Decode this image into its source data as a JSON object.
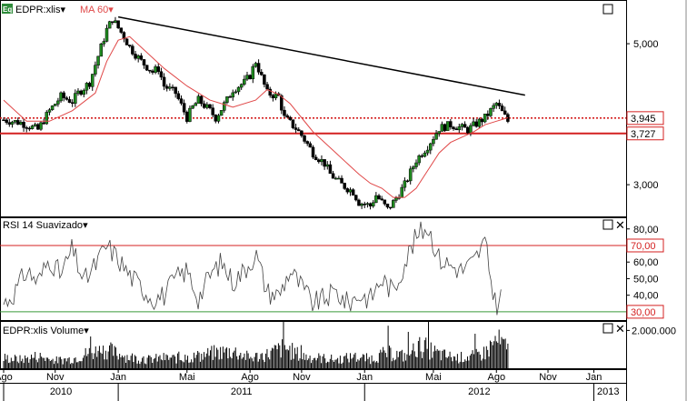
{
  "chart_data": [
    {
      "type": "candlestick",
      "panel": "price",
      "legend": [
        {
          "badge": "Eq",
          "name": "EDPR:xlis",
          "color": "#000000",
          "marker": "▾"
        },
        {
          "name": "MA 60",
          "color": "#e04848",
          "marker": "▾"
        }
      ],
      "ylim": [
        2.55,
        5.62
      ],
      "yticks": [
        3.0,
        5.0
      ],
      "ytick_labels": [
        "3,000",
        "5,000"
      ],
      "series": [
        {
          "name": "EDPR:xlis",
          "kind": "close",
          "t": [
            0,
            3,
            6,
            8,
            10,
            12,
            13,
            15,
            17,
            18,
            19,
            21,
            22,
            24,
            26,
            27,
            28,
            30,
            32,
            33,
            34,
            36,
            37,
            39,
            40,
            42,
            43,
            44,
            46,
            48,
            49,
            51,
            52,
            54,
            56,
            57,
            59,
            61,
            62,
            64,
            65,
            67,
            68,
            70,
            72,
            74,
            76,
            78,
            81,
            84,
            86,
            88
          ],
          "y": [
            3.92,
            3.88,
            3.78,
            4.05,
            4.25,
            4.18,
            4.3,
            4.45,
            4.95,
            5.2,
            5.35,
            5.1,
            4.95,
            4.75,
            4.6,
            4.65,
            4.4,
            4.3,
            3.95,
            4.1,
            4.2,
            4.05,
            3.95,
            4.2,
            4.35,
            4.45,
            4.55,
            4.75,
            4.3,
            4.25,
            3.95,
            3.8,
            3.7,
            3.45,
            3.3,
            3.15,
            3.0,
            2.9,
            2.75,
            2.7,
            2.85,
            2.65,
            2.75,
            3.0,
            3.35,
            3.55,
            3.8,
            3.85,
            3.78,
            3.95,
            4.15,
            3.9
          ]
        },
        {
          "name": "MA 60",
          "kind": "moving-average",
          "t": [
            0,
            4,
            8,
            12,
            16,
            18,
            20,
            22,
            24,
            28,
            32,
            36,
            40,
            44,
            46,
            48,
            50,
            52,
            54,
            56,
            58,
            60,
            62,
            64,
            66,
            68,
            70,
            72,
            74,
            76,
            78,
            82,
            84,
            86,
            88
          ],
          "y": [
            4.2,
            3.9,
            3.9,
            4.05,
            4.3,
            4.75,
            5.05,
            5.1,
            4.95,
            4.65,
            4.4,
            4.2,
            4.1,
            4.2,
            4.35,
            4.28,
            4.15,
            3.95,
            3.75,
            3.6,
            3.45,
            3.3,
            3.15,
            3.02,
            2.95,
            2.82,
            2.82,
            2.95,
            3.2,
            3.45,
            3.6,
            3.75,
            3.85,
            3.9,
            3.95
          ]
        }
      ],
      "trendline": {
        "from": {
          "t": 20,
          "y": 5.38
        },
        "to": {
          "t": 91,
          "y": 4.27
        },
        "color": "#000000"
      },
      "horizontal_lines": [
        {
          "value": 3.945,
          "label": "3,945",
          "style": "dotted",
          "color": "#d42020",
          "label_style": "boxed"
        },
        {
          "value": 3.727,
          "label": "3,727",
          "style": "solid",
          "color": "#d42020",
          "label_style": "boxed"
        }
      ]
    },
    {
      "type": "line",
      "panel": "rsi",
      "title": "RSI 14 Suavizado",
      "title_marker": "▾",
      "ylim": [
        25,
        87
      ],
      "yticks": [
        40,
        50,
        60,
        80
      ],
      "ytick_labels": [
        "40,00",
        "50,00",
        "60,00",
        "80,00"
      ],
      "levels": [
        {
          "value": 70,
          "label": "70,00",
          "color": "#d42020"
        },
        {
          "value": 30,
          "label": "30,00",
          "color": "#3a9a3a"
        }
      ],
      "series": [
        {
          "name": "RSI 14 Suavizado",
          "t": [
            0,
            2,
            4,
            6,
            8,
            10,
            12,
            14,
            16,
            18,
            20,
            22,
            24,
            26,
            28,
            30,
            32,
            34,
            36,
            38,
            40,
            42,
            44,
            46,
            48,
            50,
            52,
            54,
            56,
            58,
            60,
            62,
            64,
            66,
            68,
            70,
            72,
            74,
            76,
            78,
            80,
            82,
            84,
            85,
            86,
            87
          ],
          "y": [
            35,
            42,
            55,
            48,
            62,
            52,
            68,
            48,
            58,
            70,
            62,
            52,
            45,
            38,
            40,
            50,
            55,
            38,
            52,
            60,
            48,
            55,
            65,
            42,
            40,
            55,
            45,
            35,
            38,
            42,
            35,
            40,
            38,
            50,
            42,
            60,
            75,
            82,
            62,
            58,
            55,
            60,
            72,
            50,
            32,
            42
          ]
        }
      ]
    },
    {
      "type": "bar",
      "panel": "volume",
      "title": "EDPR:xlis Volume",
      "title_marker": "▾",
      "ylim": [
        0,
        2500000
      ],
      "yticks": [
        2000000
      ],
      "ytick_labels": [
        "2.000.000"
      ],
      "series": [
        {
          "name": "EDPR:xlis Volume",
          "t": [
            0,
            3,
            6,
            9,
            12,
            15,
            18,
            20,
            22,
            25,
            28,
            31,
            34,
            37,
            40,
            43,
            46,
            49,
            52,
            55,
            58,
            61,
            64,
            67,
            70,
            73,
            76,
            79,
            82,
            84,
            86,
            88
          ],
          "y": [
            600000,
            500000,
            700000,
            450000,
            550000,
            900000,
            1100000,
            800000,
            650000,
            500000,
            600000,
            550000,
            700000,
            900000,
            1000000,
            600000,
            800000,
            1200000,
            700000,
            600000,
            500000,
            650000,
            550000,
            900000,
            700000,
            1300000,
            800000,
            600000,
            700000,
            900000,
            1600000,
            1100000
          ]
        }
      ]
    }
  ],
  "x_axis": {
    "ticks": [
      {
        "t": 0,
        "label": "Ago"
      },
      {
        "t": 9,
        "label": "Nov"
      },
      {
        "t": 20,
        "label": "Jan"
      },
      {
        "t": 32,
        "label": "Mai"
      },
      {
        "t": 43,
        "label": "Ago"
      },
      {
        "t": 52,
        "label": "Nov"
      },
      {
        "t": 63,
        "label": "Jan"
      },
      {
        "t": 75,
        "label": "Mai"
      },
      {
        "t": 86,
        "label": "Ago"
      },
      {
        "t": 95,
        "label": "Nov"
      },
      {
        "t": 103,
        "label": "Jan"
      }
    ],
    "years": [
      {
        "t_start": 0,
        "t_end": 20,
        "label": "2010"
      },
      {
        "t_start": 20,
        "t_end": 63,
        "label": "2011"
      },
      {
        "t_start": 63,
        "t_end": 103,
        "label": "2012"
      },
      {
        "t_start": 103,
        "t_end": 108,
        "label": "2013"
      }
    ]
  },
  "panel_buttons": {
    "maximize": "□",
    "close": "✕"
  }
}
